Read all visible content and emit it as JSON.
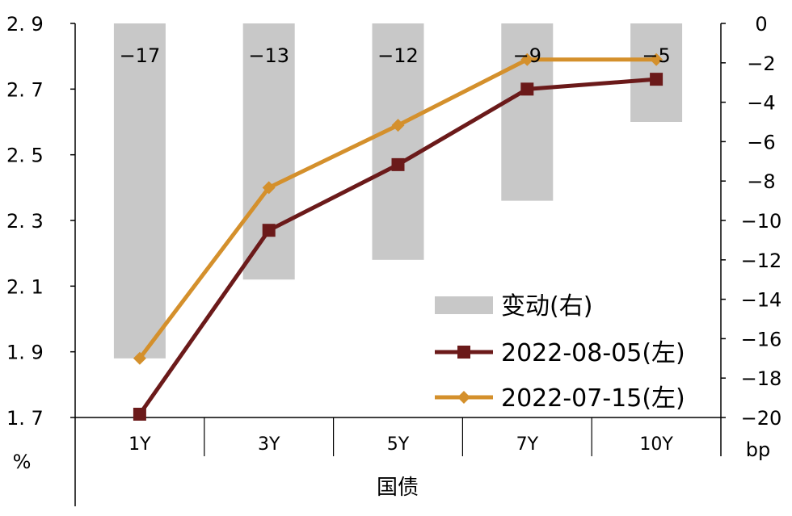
{
  "chart_data": {
    "type": "bar+line",
    "categories": [
      "1Y",
      "3Y",
      "5Y",
      "7Y",
      "10Y"
    ],
    "xlabel": "国债",
    "left_axis": {
      "unit": "%",
      "ylim": [
        1.7,
        2.9
      ],
      "ticks": [
        "2. 9",
        "2. 7",
        "2. 5",
        "2. 3",
        "2. 1",
        "1. 9",
        "1. 7"
      ],
      "tick_values": [
        2.9,
        2.7,
        2.5,
        2.3,
        2.1,
        1.9,
        1.7
      ]
    },
    "right_axis": {
      "unit": "bp",
      "ylim": [
        -20,
        0
      ],
      "ticks": [
        "0",
        "−2",
        "−4",
        "−6",
        "−8",
        "−10",
        "−12",
        "−14",
        "−16",
        "−18",
        "−20"
      ],
      "tick_values": [
        0,
        -2,
        -4,
        -6,
        -8,
        -10,
        -12,
        -14,
        -16,
        -18,
        -20
      ]
    },
    "bars": {
      "name": "变动(右)",
      "axis": "right",
      "color": "#c8c8c8",
      "values": [
        -17,
        -13,
        -12,
        -9,
        -5
      ],
      "labels": [
        "−17",
        "−13",
        "−12",
        "−9",
        "−5"
      ]
    },
    "series": [
      {
        "name": "2022-08-05(左)",
        "axis": "left",
        "color": "#6b1a1a",
        "marker": "square",
        "values": [
          1.71,
          2.27,
          2.47,
          2.7,
          2.73
        ]
      },
      {
        "name": "2022-07-15(左)",
        "axis": "left",
        "color": "#d4902c",
        "marker": "diamond",
        "values": [
          1.88,
          2.4,
          2.59,
          2.79,
          2.79
        ]
      }
    ],
    "legend_position": "bottom-right"
  }
}
